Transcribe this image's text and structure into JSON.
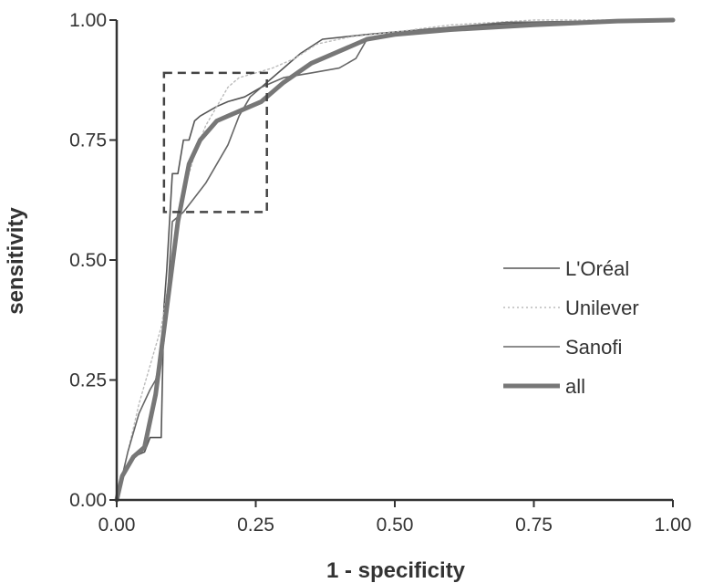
{
  "chart_data": {
    "type": "line",
    "xlabel": "1 - specificity",
    "ylabel": "sensitivity",
    "xlim": [
      0,
      1
    ],
    "ylim": [
      0,
      1
    ],
    "x_ticks": [
      "0.00",
      "0.25",
      "0.50",
      "0.75",
      "1.00"
    ],
    "y_ticks": [
      "0.00",
      "0.25",
      "0.50",
      "0.75",
      "1.00"
    ],
    "grid": false,
    "legend_position": "right",
    "zoom_box": {
      "x": [
        0.085,
        0.27
      ],
      "y": [
        0.6,
        0.89
      ]
    },
    "series": [
      {
        "name": "L'Oréal",
        "color": "#555555",
        "style": "thin",
        "points": [
          [
            0,
            0
          ],
          [
            0.01,
            0.05
          ],
          [
            0.03,
            0.09
          ],
          [
            0.05,
            0.1
          ],
          [
            0.06,
            0.13
          ],
          [
            0.08,
            0.13
          ],
          [
            0.085,
            0.4
          ],
          [
            0.09,
            0.48
          ],
          [
            0.1,
            0.68
          ],
          [
            0.11,
            0.68
          ],
          [
            0.12,
            0.75
          ],
          [
            0.13,
            0.75
          ],
          [
            0.14,
            0.79
          ],
          [
            0.15,
            0.8
          ],
          [
            0.18,
            0.82
          ],
          [
            0.2,
            0.83
          ],
          [
            0.23,
            0.84
          ],
          [
            0.26,
            0.86
          ],
          [
            0.3,
            0.9
          ],
          [
            0.33,
            0.93
          ],
          [
            0.37,
            0.96
          ],
          [
            0.45,
            0.97
          ],
          [
            0.5,
            0.975
          ],
          [
            0.6,
            0.985
          ],
          [
            0.75,
            0.995
          ],
          [
            1,
            1
          ]
        ]
      },
      {
        "name": "Unilever",
        "color": "#bbbbbb",
        "style": "dotted",
        "points": [
          [
            0,
            0
          ],
          [
            0.02,
            0.1
          ],
          [
            0.04,
            0.2
          ],
          [
            0.06,
            0.28
          ],
          [
            0.08,
            0.36
          ],
          [
            0.1,
            0.5
          ],
          [
            0.12,
            0.64
          ],
          [
            0.14,
            0.72
          ],
          [
            0.16,
            0.78
          ],
          [
            0.18,
            0.82
          ],
          [
            0.2,
            0.86
          ],
          [
            0.22,
            0.88
          ],
          [
            0.25,
            0.89
          ],
          [
            0.28,
            0.9
          ],
          [
            0.32,
            0.92
          ],
          [
            0.36,
            0.95
          ],
          [
            0.42,
            0.965
          ],
          [
            0.5,
            0.975
          ],
          [
            0.6,
            0.99
          ],
          [
            0.75,
            1
          ],
          [
            1,
            1
          ]
        ]
      },
      {
        "name": "Sanofi",
        "color": "#666666",
        "style": "thin",
        "points": [
          [
            0,
            0
          ],
          [
            0.02,
            0.1
          ],
          [
            0.04,
            0.18
          ],
          [
            0.06,
            0.23
          ],
          [
            0.07,
            0.25
          ],
          [
            0.085,
            0.33
          ],
          [
            0.09,
            0.4
          ],
          [
            0.1,
            0.58
          ],
          [
            0.12,
            0.6
          ],
          [
            0.14,
            0.63
          ],
          [
            0.16,
            0.66
          ],
          [
            0.18,
            0.7
          ],
          [
            0.2,
            0.74
          ],
          [
            0.22,
            0.8
          ],
          [
            0.24,
            0.84
          ],
          [
            0.26,
            0.86
          ],
          [
            0.3,
            0.88
          ],
          [
            0.35,
            0.89
          ],
          [
            0.4,
            0.9
          ],
          [
            0.43,
            0.92
          ],
          [
            0.45,
            0.96
          ],
          [
            0.55,
            0.98
          ],
          [
            0.7,
            0.995
          ],
          [
            1,
            1
          ]
        ]
      },
      {
        "name": "all",
        "color": "#777777",
        "style": "thick",
        "points": [
          [
            0,
            0
          ],
          [
            0.01,
            0.05
          ],
          [
            0.03,
            0.09
          ],
          [
            0.05,
            0.11
          ],
          [
            0.07,
            0.22
          ],
          [
            0.09,
            0.4
          ],
          [
            0.11,
            0.58
          ],
          [
            0.12,
            0.64
          ],
          [
            0.13,
            0.7
          ],
          [
            0.15,
            0.75
          ],
          [
            0.18,
            0.79
          ],
          [
            0.22,
            0.81
          ],
          [
            0.26,
            0.83
          ],
          [
            0.3,
            0.87
          ],
          [
            0.35,
            0.91
          ],
          [
            0.4,
            0.935
          ],
          [
            0.45,
            0.96
          ],
          [
            0.5,
            0.97
          ],
          [
            0.6,
            0.98
          ],
          [
            0.75,
            0.99
          ],
          [
            0.9,
            0.998
          ],
          [
            1,
            1
          ]
        ]
      }
    ]
  }
}
